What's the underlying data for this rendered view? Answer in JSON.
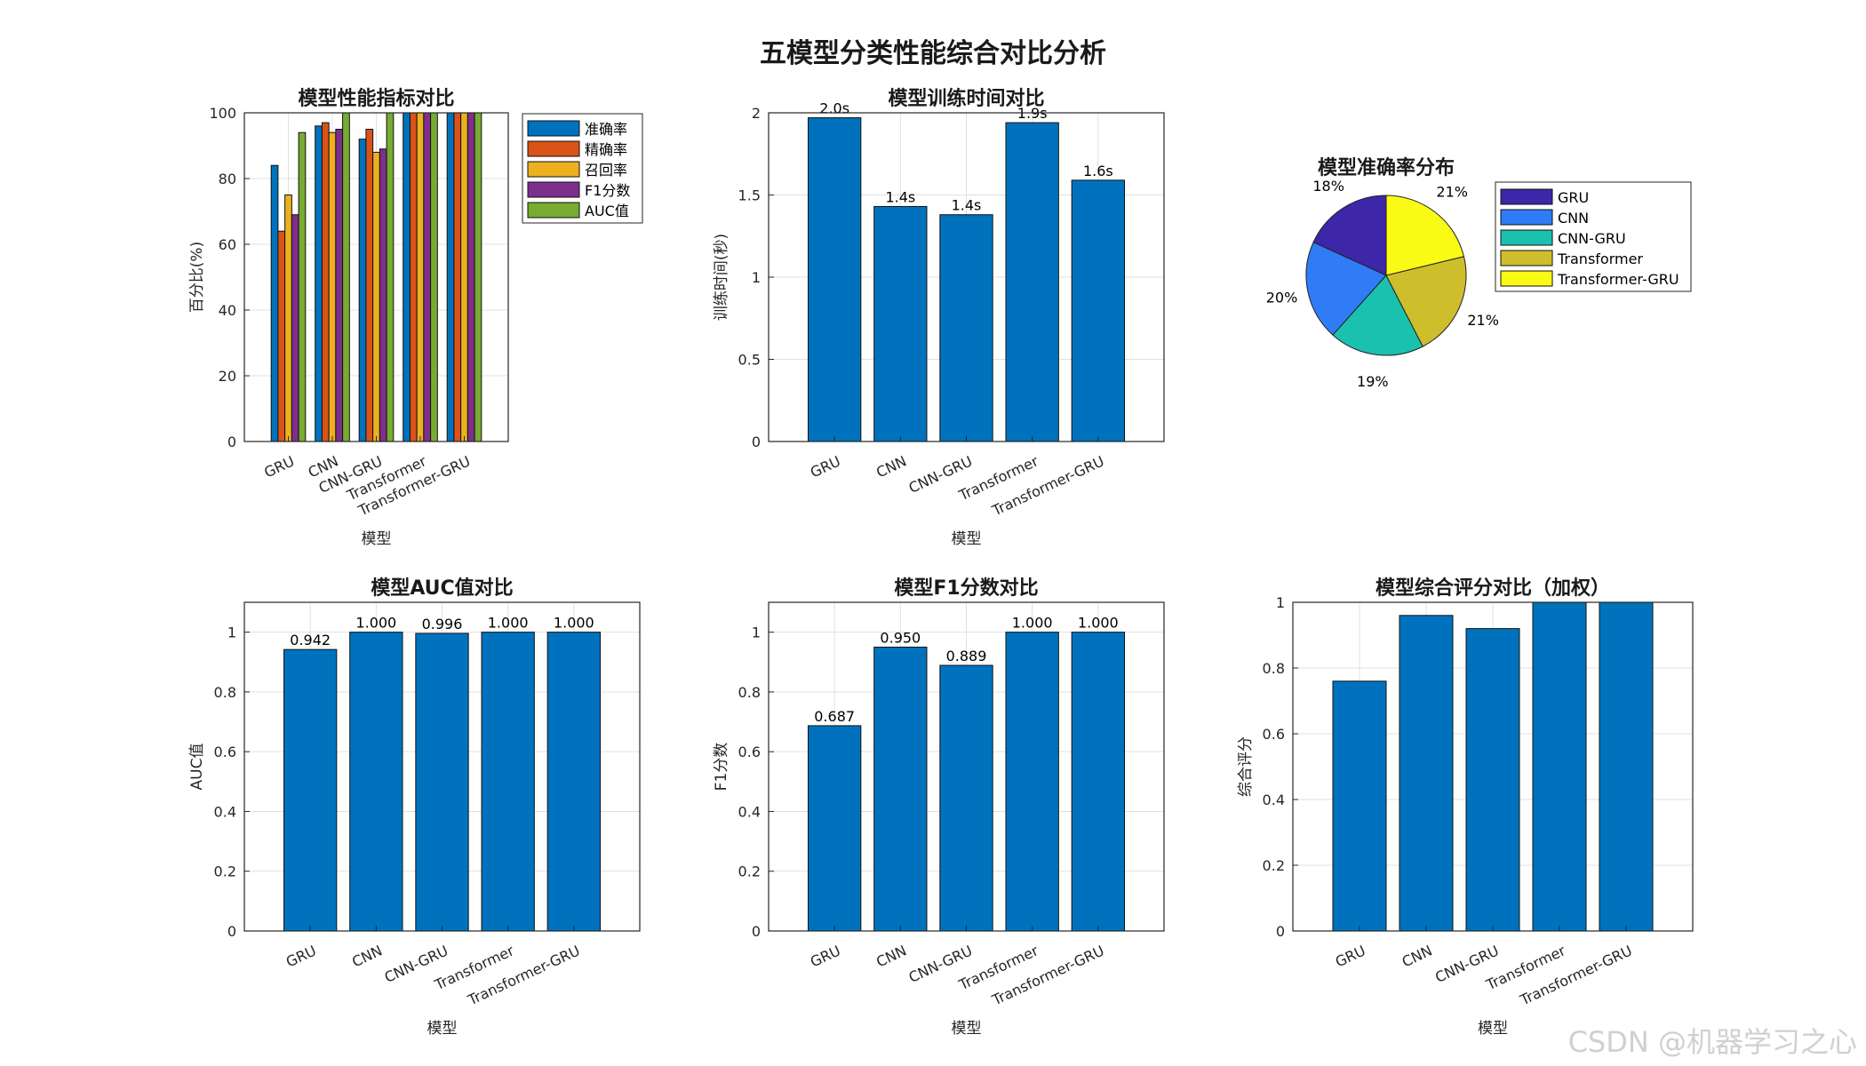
{
  "main_title": "五模型分类性能综合对比分析",
  "watermark": "CSDN @机器学习之心",
  "colors": {
    "bar_single": "#0072BD",
    "metrics": [
      "#0072BD",
      "#D95319",
      "#EDB120",
      "#7E2F8E",
      "#77AC30"
    ],
    "pie": [
      "#3E26A8",
      "#2F7CF6",
      "#1AC1AF",
      "#CFBE2B",
      "#F9FB15"
    ]
  },
  "chart_data": [
    {
      "id": "metrics",
      "type": "bar",
      "title": "模型性能指标对比",
      "xlabel": "模型",
      "ylabel": "百分比(%)",
      "ylim": [
        0,
        100
      ],
      "yticks": [
        0,
        20,
        40,
        60,
        80,
        100
      ],
      "categories": [
        "GRU",
        "CNN",
        "CNN-GRU",
        "Transformer",
        "Transformer-GRU"
      ],
      "series": [
        {
          "name": "准确率",
          "values": [
            84,
            96,
            92,
            100,
            100
          ]
        },
        {
          "name": "精确率",
          "values": [
            64,
            97,
            95,
            100,
            100
          ]
        },
        {
          "name": "召回率",
          "values": [
            75,
            94,
            88,
            100,
            100
          ]
        },
        {
          "name": "F1分数",
          "values": [
            69,
            95,
            89,
            100,
            100
          ]
        },
        {
          "name": "AUC值",
          "values": [
            94,
            100,
            100,
            100,
            100
          ]
        }
      ],
      "legend": "outside-top-right",
      "grid": true
    },
    {
      "id": "time",
      "type": "bar",
      "title": "模型训练时间对比",
      "xlabel": "模型",
      "ylabel": "训练时间(秒)",
      "ylim": [
        0,
        2
      ],
      "yticks": [
        0,
        0.5,
        1,
        1.5,
        2
      ],
      "categories": [
        "GRU",
        "CNN",
        "CNN-GRU",
        "Transformer",
        "Transformer-GRU"
      ],
      "values": [
        1.97,
        1.43,
        1.38,
        1.94,
        1.59
      ],
      "data_labels": [
        "2.0s",
        "1.4s",
        "1.4s",
        "1.9s",
        "1.6s"
      ],
      "grid": true
    },
    {
      "id": "pie",
      "type": "pie",
      "title": "模型准确率分布",
      "labels": [
        "GRU",
        "CNN",
        "CNN-GRU",
        "Transformer",
        "Transformer-GRU"
      ],
      "values": [
        18,
        20,
        19,
        21,
        21
      ],
      "data_labels": [
        "18%",
        "20%",
        "19%",
        "21%",
        "21%"
      ],
      "legend": "right"
    },
    {
      "id": "auc",
      "type": "bar",
      "title": "模型AUC值对比",
      "xlabel": "模型",
      "ylabel": "AUC值",
      "ylim": [
        0,
        1.1
      ],
      "yticks": [
        0,
        0.2,
        0.4,
        0.6,
        0.8,
        1
      ],
      "categories": [
        "GRU",
        "CNN",
        "CNN-GRU",
        "Transformer",
        "Transformer-GRU"
      ],
      "values": [
        0.942,
        1.0,
        0.996,
        1.0,
        1.0
      ],
      "data_labels": [
        "0.942",
        "1.000",
        "0.996",
        "1.000",
        "1.000"
      ],
      "grid": true
    },
    {
      "id": "f1",
      "type": "bar",
      "title": "模型F1分数对比",
      "xlabel": "模型",
      "ylabel": "F1分数",
      "ylim": [
        0,
        1.1
      ],
      "yticks": [
        0,
        0.2,
        0.4,
        0.6,
        0.8,
        1
      ],
      "categories": [
        "GRU",
        "CNN",
        "CNN-GRU",
        "Transformer",
        "Transformer-GRU"
      ],
      "values": [
        0.687,
        0.95,
        0.889,
        1.0,
        1.0
      ],
      "data_labels": [
        "0.687",
        "0.950",
        "0.889",
        "1.000",
        "1.000"
      ],
      "grid": true
    },
    {
      "id": "score",
      "type": "bar",
      "title": "模型综合评分对比（加权）",
      "xlabel": "模型",
      "ylabel": "综合评分",
      "ylim": [
        0,
        1
      ],
      "yticks": [
        0,
        0.2,
        0.4,
        0.6,
        0.8,
        1
      ],
      "categories": [
        "GRU",
        "CNN",
        "CNN-GRU",
        "Transformer",
        "Transformer-GRU"
      ],
      "values": [
        0.76,
        0.96,
        0.92,
        1.0,
        1.0
      ],
      "grid": true
    }
  ]
}
